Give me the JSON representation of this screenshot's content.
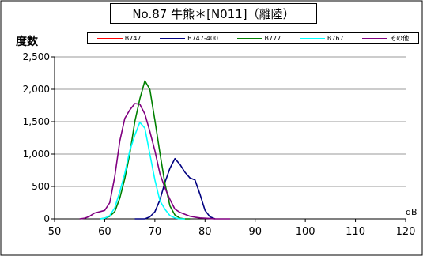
{
  "chart_data": {
    "type": "line",
    "title": "No.87 牛熊＊[N011]（離陸）",
    "ylabel": "度数",
    "xlabel": "",
    "x_unit": "dB",
    "xlim": [
      50,
      120
    ],
    "ylim": [
      0,
      2500
    ],
    "x_ticks": [
      50,
      60,
      70,
      80,
      90,
      100,
      110,
      120
    ],
    "y_ticks": [
      0,
      500,
      1000,
      1500,
      2000,
      2500
    ],
    "x_tick_labels": [
      "50",
      "60",
      "70",
      "80",
      "90",
      "100",
      "110",
      "120"
    ],
    "y_tick_labels": [
      "0",
      "500",
      "1,000",
      "1,500",
      "2,000",
      "2,500"
    ],
    "grid": "horizontal",
    "legend_position": "top",
    "series": [
      {
        "name": "B747",
        "color": "#ff0000",
        "x": [],
        "y": []
      },
      {
        "name": "B747-400",
        "color": "#000080",
        "x": [
          66,
          67,
          68,
          69,
          70,
          71,
          72,
          73,
          74,
          75,
          76,
          77,
          78,
          79,
          80,
          81,
          82
        ],
        "y": [
          0,
          0,
          0,
          30,
          110,
          290,
          560,
          780,
          930,
          840,
          720,
          630,
          600,
          380,
          130,
          30,
          0
        ]
      },
      {
        "name": "B777",
        "color": "#008000",
        "x": [
          59,
          60,
          61,
          62,
          63,
          64,
          65,
          66,
          67,
          68,
          69,
          70,
          71,
          72,
          73,
          74,
          75,
          76,
          77
        ],
        "y": [
          0,
          10,
          40,
          110,
          320,
          620,
          1000,
          1500,
          1850,
          2130,
          2000,
          1520,
          1020,
          550,
          200,
          60,
          10,
          0,
          0
        ]
      },
      {
        "name": "B767",
        "color": "#00ffff",
        "x": [
          59,
          60,
          61,
          62,
          63,
          64,
          65,
          66,
          67,
          68,
          69,
          70,
          71,
          72,
          73,
          74,
          75,
          76
        ],
        "y": [
          0,
          10,
          50,
          170,
          420,
          700,
          1050,
          1290,
          1490,
          1400,
          1000,
          600,
          280,
          150,
          50,
          15,
          0,
          0
        ]
      },
      {
        "name": "その他",
        "color": "#800080",
        "x": [
          55,
          56,
          57,
          58,
          59,
          60,
          61,
          62,
          63,
          64,
          65,
          66,
          67,
          68,
          69,
          70,
          71,
          72,
          73,
          74,
          75,
          76,
          77,
          78,
          79,
          80,
          81,
          82,
          83,
          84,
          85
        ],
        "y": [
          0,
          10,
          40,
          90,
          110,
          130,
          250,
          650,
          1200,
          1550,
          1680,
          1780,
          1770,
          1620,
          1350,
          1050,
          700,
          480,
          300,
          150,
          100,
          70,
          40,
          25,
          15,
          10,
          5,
          0,
          0,
          0,
          0
        ]
      }
    ]
  }
}
